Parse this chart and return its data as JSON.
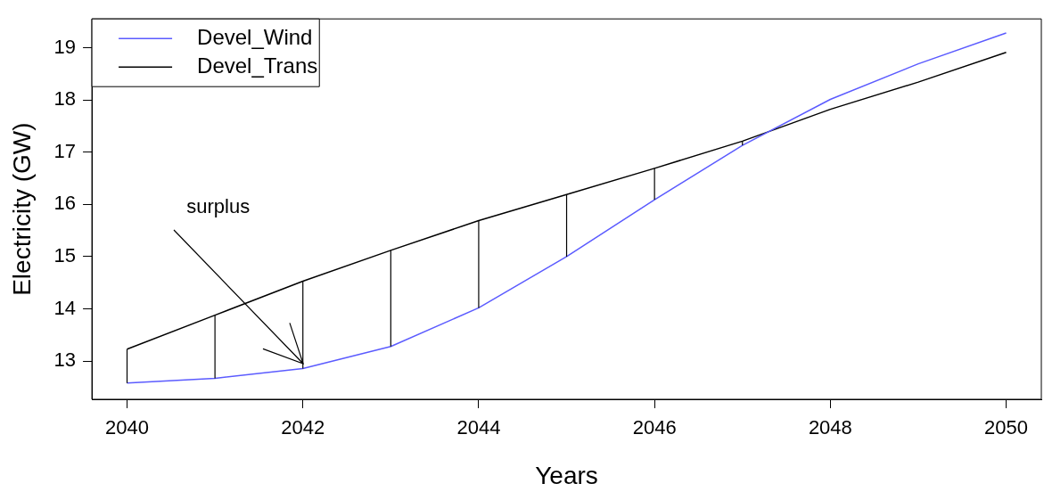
{
  "chart_data": {
    "type": "line",
    "xlabel": "Years",
    "ylabel": "Electricity (GW)",
    "x": [
      2040,
      2041,
      2042,
      2043,
      2044,
      2045,
      2046,
      2047,
      2048,
      2049,
      2050
    ],
    "series": [
      {
        "name": "Devel_Wind",
        "color": "#5b5bff",
        "values": [
          12.58,
          12.67,
          12.86,
          13.28,
          14.02,
          15.0,
          16.09,
          17.13,
          18.01,
          18.69,
          19.28
        ],
        "errors": [
          [
            12.58,
            13.23
          ],
          [
            12.67,
            13.88
          ],
          [
            12.86,
            14.53
          ],
          [
            13.28,
            15.12
          ],
          [
            14.02,
            15.69
          ],
          [
            15.0,
            16.19
          ],
          [
            16.09,
            16.69
          ],
          [
            17.13,
            17.21
          ],
          null,
          null,
          null
        ]
      },
      {
        "name": "Devel_Trans",
        "color": "#000000",
        "values": [
          13.23,
          13.88,
          14.53,
          15.12,
          15.69,
          16.19,
          16.69,
          17.21,
          17.82,
          18.34,
          18.91
        ]
      }
    ],
    "xlim": [
      2039.6,
      2050.4
    ],
    "xticks": [
      2040,
      2042,
      2044,
      2046,
      2048,
      2050
    ],
    "ylim": [
      12.27,
      19.55
    ],
    "yticks": [
      13,
      14,
      15,
      16,
      17,
      18,
      19
    ],
    "annotations": [
      {
        "text": "surplus",
        "x": 2042,
        "y": 12.95
      }
    ],
    "legend": "top left",
    "grid": false,
    "marker": "none",
    "line_style": "solid"
  }
}
